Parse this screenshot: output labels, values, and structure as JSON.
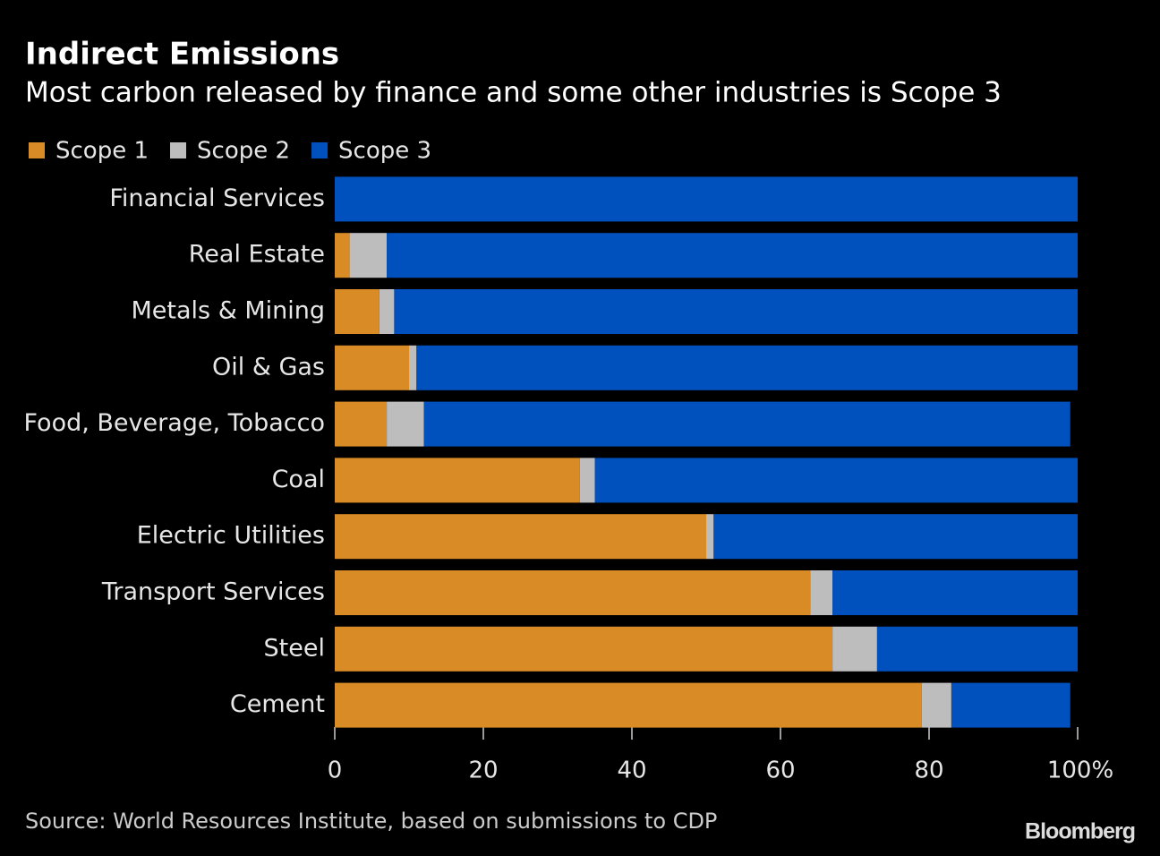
{
  "chart_data": {
    "type": "stacked-barh",
    "title": "Indirect Emissions",
    "subtitle": "Most carbon released by finance and some other industries is Scope 3",
    "categories": [
      "Financial Services",
      "Real Estate",
      "Metals & Mining",
      "Oil & Gas",
      "Food, Beverage, Tobacco",
      "Coal",
      "Electric Utilities",
      "Transport Services",
      "Steel",
      "Cement"
    ],
    "series": [
      {
        "name": "Scope 1",
        "color": "#d98b26",
        "values": [
          0,
          2,
          6,
          10,
          7,
          33,
          50,
          64,
          67,
          79
        ]
      },
      {
        "name": "Scope 2",
        "color": "#bdbdbd",
        "values": [
          0,
          5,
          2,
          1,
          5,
          2,
          1,
          3,
          6,
          4
        ]
      },
      {
        "name": "Scope 3",
        "color": "#0051be",
        "values": [
          100,
          93,
          92,
          89,
          87,
          65,
          49,
          33,
          27,
          16
        ]
      }
    ],
    "xlim": [
      0,
      100
    ],
    "xticks": [
      0,
      20,
      40,
      60,
      80,
      {
        "value": 100,
        "label": "100%"
      }
    ],
    "legend": "top-left",
    "source": "Source: World Resources Institute, based on submissions to CDP",
    "brand": "Bloomberg"
  }
}
